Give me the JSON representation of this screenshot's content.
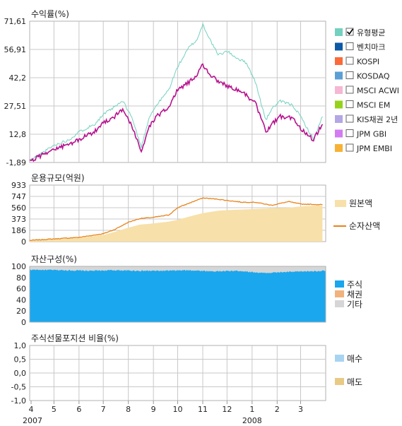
{
  "colors": {
    "fund_return": "#73d1bf",
    "benchmark_return": "#b7128f",
    "aum_fill": "#f7e0a9",
    "aum_line": "#e8831a",
    "stock": "#1aa7ee",
    "bond": "#f2b27e",
    "other": "#d6d6d6",
    "buy": "#a8d4f2",
    "sell": "#e9ca84",
    "grid": "#c8c8c8"
  },
  "legend_return": [
    {
      "label": "유형평균",
      "color": "#73d1bf",
      "checked": true,
      "icon": "checkbox-icon"
    },
    {
      "label": "벤치마크",
      "color": "#0c5aa6",
      "checked": false,
      "icon": "checkbox-icon"
    },
    {
      "label": "KOSPI",
      "color": "#fb6a3a",
      "checked": false,
      "icon": "checkbox-icon"
    },
    {
      "label": "KOSDAQ",
      "color": "#5b9fd6",
      "checked": false,
      "icon": "checkbox-icon"
    },
    {
      "label": "MSCI ACWI",
      "color": "#f5b7d3",
      "checked": false,
      "icon": "checkbox-icon"
    },
    {
      "label": "MSCI EM",
      "color": "#96d21a",
      "checked": false,
      "icon": "checkbox-icon"
    },
    {
      "label": "KIS채권 2년",
      "color": "#b5a6e5",
      "checked": false,
      "icon": "checkbox-icon"
    },
    {
      "label": "JPM GBI",
      "color": "#d37bf2",
      "checked": false,
      "icon": "checkbox-icon"
    },
    {
      "label": "JPM EMBI",
      "color": "#f7b233",
      "checked": false,
      "icon": "checkbox-icon"
    }
  ],
  "legend_aum": [
    {
      "label": "원본액",
      "color": "#f7e0a9"
    },
    {
      "label": "순자산액",
      "color": "#e8831a"
    }
  ],
  "legend_assets": [
    {
      "label": "주식",
      "color": "#1aa7ee"
    },
    {
      "label": "채권",
      "color": "#f2b27e"
    },
    {
      "label": "기타",
      "color": "#d6d6d6"
    }
  ],
  "legend_futures": [
    {
      "label": "매수",
      "color": "#a8d4f2"
    },
    {
      "label": "매도",
      "color": "#e9ca84"
    }
  ],
  "chart_data": [
    {
      "type": "line",
      "title": "수익률(%)",
      "x": [
        "2007-04-01",
        "2007-04-20",
        "2007-05-01",
        "2007-05-20",
        "2007-06-01",
        "2007-06-20",
        "2007-07-01",
        "2007-07-15",
        "2007-07-25",
        "2007-08-05",
        "2007-08-17",
        "2007-08-27",
        "2007-09-05",
        "2007-09-20",
        "2007-10-01",
        "2007-10-15",
        "2007-10-25",
        "2007-11-01",
        "2007-11-10",
        "2007-11-20",
        "2007-12-01",
        "2007-12-15",
        "2007-12-25",
        "2008-01-05",
        "2008-01-18",
        "2008-01-25",
        "2008-02-05",
        "2008-02-20",
        "2008-03-01",
        "2008-03-17",
        "2008-03-28"
      ],
      "series": [
        {
          "name": "유형평균",
          "values": [
            -1.0,
            4.0,
            7.0,
            10.0,
            14.0,
            18.0,
            23.0,
            27.0,
            30.0,
            22.0,
            6.0,
            22.0,
            28.0,
            36.0,
            48.0,
            58.0,
            62.0,
            70.0,
            62.0,
            54.0,
            56.0,
            52.0,
            50.0,
            40.0,
            20.0,
            26.0,
            30.0,
            28.0,
            22.0,
            10.0,
            22.0
          ]
        },
        {
          "name": "",
          "values": [
            -1.5,
            3.0,
            5.0,
            7.5,
            10.0,
            14.0,
            19.0,
            22.0,
            26.0,
            17.0,
            4.0,
            17.0,
            22.0,
            27.0,
            36.0,
            40.0,
            44.0,
            49.0,
            44.0,
            40.0,
            38.0,
            36.0,
            33.0,
            29.0,
            14.0,
            18.0,
            22.0,
            21.0,
            16.0,
            10.0,
            18.0
          ]
        }
      ],
      "ylim": [
        -1.89,
        71.61
      ],
      "yticks": [
        "71,61",
        "56,91",
        "42,2",
        "27,51",
        "12,8",
        "-1,89"
      ],
      "grid": true
    },
    {
      "type": "area",
      "title": "운용규모(억원)",
      "x": [
        "2007-04-01",
        "2007-05-01",
        "2007-06-01",
        "2007-07-01",
        "2007-07-15",
        "2007-08-01",
        "2007-08-15",
        "2007-09-01",
        "2007-09-20",
        "2007-10-01",
        "2007-10-20",
        "2007-11-01",
        "2007-11-20",
        "2007-12-01",
        "2007-12-20",
        "2008-01-05",
        "2008-01-25",
        "2008-02-15",
        "2008-03-01",
        "2008-03-28"
      ],
      "series": [
        {
          "name": "원본액",
          "values": [
            20,
            40,
            60,
            110,
            160,
            230,
            280,
            300,
            330,
            360,
            430,
            470,
            510,
            520,
            530,
            540,
            550,
            560,
            580,
            600
          ]
        },
        {
          "name": "순자산액",
          "values": [
            20,
            45,
            70,
            130,
            200,
            320,
            380,
            400,
            440,
            560,
            660,
            720,
            700,
            680,
            650,
            650,
            600,
            660,
            620,
            610
          ]
        }
      ],
      "ylim": [
        0,
        933
      ],
      "yticks": [
        "933",
        "747",
        "560",
        "373",
        "186",
        "0"
      ],
      "grid": true
    },
    {
      "type": "area",
      "title": "자산구성(%)",
      "x": [
        "2007-04",
        "2007-05",
        "2007-06",
        "2007-07",
        "2007-08",
        "2007-09",
        "2007-10",
        "2007-11",
        "2007-12",
        "2008-01",
        "2008-02",
        "2008-03"
      ],
      "series": [
        {
          "name": "주식",
          "values": [
            94,
            93,
            92,
            93,
            92,
            92,
            93,
            91,
            92,
            88,
            90,
            92
          ]
        },
        {
          "name": "채권",
          "values": [
            0,
            0,
            0,
            0,
            0,
            0,
            0,
            0,
            0,
            0,
            0,
            0
          ]
        },
        {
          "name": "기타",
          "values": [
            6,
            7,
            8,
            7,
            8,
            8,
            7,
            9,
            8,
            12,
            10,
            8
          ]
        }
      ],
      "ylim": [
        0,
        100
      ],
      "yticks": [
        "100",
        "80",
        "60",
        "40",
        "20",
        "0"
      ],
      "grid": true
    },
    {
      "type": "bar",
      "title": "주식선물포지션 비율(%)",
      "series": [
        {
          "name": "매수",
          "values": []
        },
        {
          "name": "매도",
          "values": []
        }
      ],
      "ylim": [
        -1.0,
        1.0
      ],
      "yticks": [
        "1,0",
        "0,5",
        "0,0",
        "-0,5",
        "-1,0"
      ],
      "grid": true
    }
  ],
  "x_axis": {
    "month_labels": [
      "4",
      "5",
      "6",
      "7",
      "8",
      "9",
      "10",
      "11",
      "12",
      "1",
      "2",
      "3"
    ],
    "year_labels": [
      "2007",
      "2008"
    ]
  }
}
